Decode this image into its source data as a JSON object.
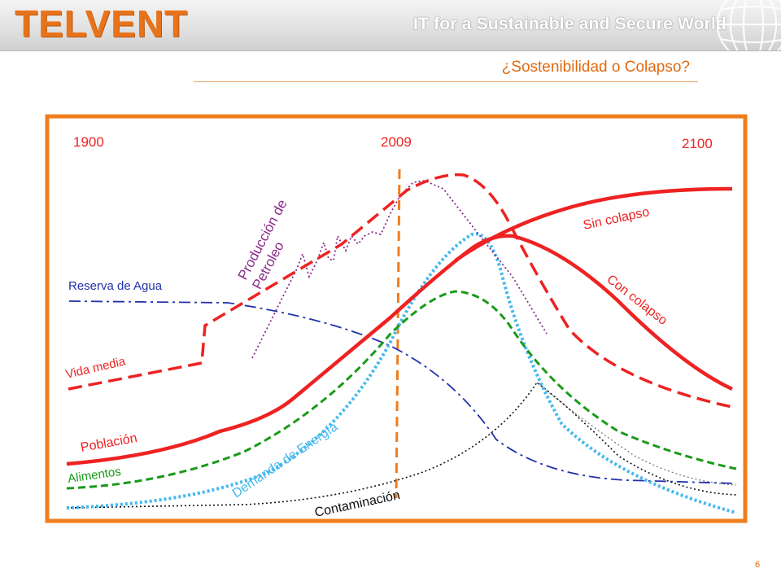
{
  "header": {
    "logo_text": "TELVENT",
    "tagline": "IT for a Sustainable and Secure World",
    "icon": "globe-grid-icon"
  },
  "slide": {
    "title": "¿Sostenibilidad o Colapso?",
    "page_number": "6"
  },
  "diagram": {
    "years": {
      "start": "1900",
      "now": "2009",
      "end": "2100"
    },
    "labels": {
      "oil_production": "Producción de Petroleo",
      "water_reserve": "Reserva de Agua",
      "life_expectancy": "Vida media",
      "population": "Población",
      "food": "Alimentos",
      "energy_demand": "Demanda de Energía",
      "pollution": "Contaminación",
      "no_collapse": "Sin colapso",
      "with_collapse": "Con colapso"
    },
    "colors": {
      "frame": "#f07d1e",
      "red": "#ee2222",
      "purple": "#8a2a8a",
      "blue": "#2233aa",
      "green": "#1a9a1a",
      "cyan": "#44b8ee",
      "black": "#111111",
      "orange": "#f07d1e"
    }
  }
}
